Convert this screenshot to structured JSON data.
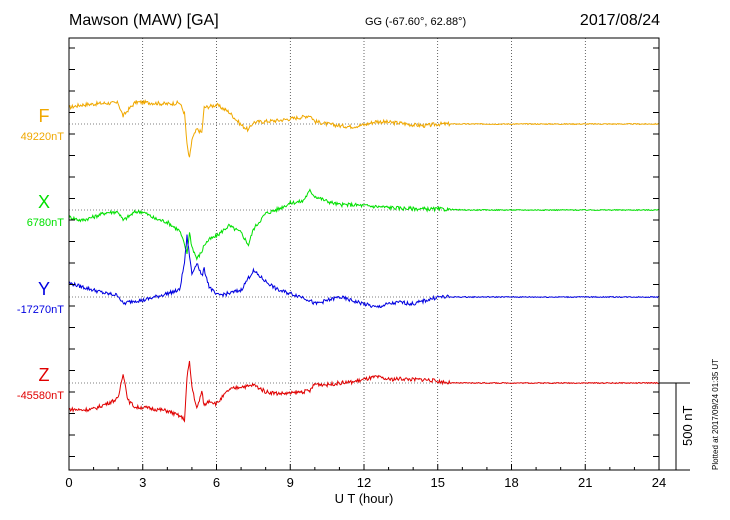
{
  "header": {
    "title": "Mawson (MAW)  [GA]",
    "coords": "GG (-67.60°,  62.88°)",
    "date": "2017/08/24",
    "plotted": "Plotted at 2017/09/24 01:35 UT"
  },
  "chart_data": {
    "type": "line",
    "title": "Mawson (MAW)  [GA]",
    "xlabel": "U T (hour)",
    "xlim": [
      0,
      24
    ],
    "xticks": [
      "0",
      "3",
      "6",
      "9",
      "12",
      "15",
      "18",
      "21",
      "24"
    ],
    "grid": true,
    "scale_bar": "500 nT",
    "x": [
      0,
      0.5,
      1,
      1.5,
      2,
      2.2,
      2.4,
      2.7,
      3,
      3.5,
      4,
      4.5,
      4.7,
      4.8,
      4.9,
      5.0,
      5.2,
      5.4,
      5.5,
      5.7,
      6,
      6.5,
      7,
      7.3,
      7.5,
      8,
      8.5,
      9,
      9.5,
      9.8,
      10,
      10.5,
      11,
      11.5,
      12,
      12.5,
      13,
      13.5,
      14,
      14.5,
      15,
      15.5,
      16,
      17,
      18,
      19,
      20,
      21,
      22,
      23,
      24
    ],
    "series": [
      {
        "name": "F",
        "color": "#f0a800",
        "baseline": "49220nT",
        "values": [
          95,
          110,
          115,
          120,
          120,
          45,
          80,
          125,
          125,
          120,
          115,
          122,
          60,
          -120,
          -200,
          -90,
          -30,
          -50,
          95,
          100,
          110,
          70,
          -5,
          -35,
          10,
          15,
          20,
          30,
          40,
          50,
          15,
          0,
          -10,
          -15,
          -5,
          15,
          10,
          5,
          -5,
          -10,
          0,
          0,
          0,
          0,
          0,
          0,
          0,
          0,
          0,
          0,
          0
        ]
      },
      {
        "name": "X",
        "color": "#00e000",
        "baseline": "6780nT",
        "values": [
          -40,
          -60,
          -40,
          -15,
          -10,
          -60,
          -40,
          -10,
          -10,
          -50,
          -70,
          -120,
          -200,
          -250,
          -130,
          -210,
          -280,
          -240,
          -200,
          -170,
          -150,
          -90,
          -130,
          -200,
          -110,
          -20,
          5,
          40,
          50,
          110,
          80,
          50,
          30,
          30,
          25,
          20,
          15,
          10,
          8,
          5,
          5,
          3,
          0,
          0,
          0,
          0,
          0,
          0,
          0,
          0,
          0
        ]
      },
      {
        "name": "Y",
        "color": "#0000e0",
        "baseline": "-17270nT",
        "values": [
          80,
          60,
          40,
          20,
          10,
          -40,
          -30,
          -20,
          -20,
          0,
          20,
          40,
          200,
          350,
          240,
          130,
          200,
          120,
          160,
          60,
          10,
          20,
          40,
          110,
          150,
          90,
          40,
          20,
          0,
          -20,
          -40,
          -20,
          0,
          -20,
          -40,
          -60,
          -40,
          -30,
          -40,
          -20,
          0,
          0,
          0,
          0,
          0,
          0,
          0,
          0,
          0,
          0,
          0
        ]
      },
      {
        "name": "Z",
        "color": "#e00000",
        "baseline": "-45580nT",
        "values": [
          -150,
          -155,
          -150,
          -120,
          -90,
          60,
          -100,
          -140,
          -140,
          -150,
          -160,
          -190,
          -210,
          30,
          120,
          -20,
          -150,
          -50,
          -130,
          -100,
          -120,
          -40,
          -20,
          -20,
          -10,
          -50,
          -60,
          -60,
          -50,
          -45,
          -5,
          -10,
          0,
          5,
          20,
          35,
          20,
          25,
          20,
          20,
          10,
          0,
          0,
          0,
          0,
          0,
          0,
          0,
          0,
          0,
          0
        ]
      }
    ]
  }
}
